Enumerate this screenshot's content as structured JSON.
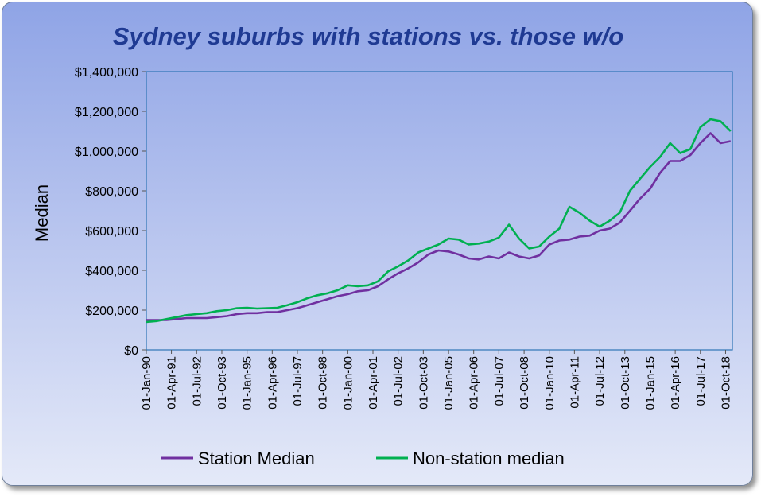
{
  "chart_data": {
    "type": "line",
    "title": "Sydney suburbs with stations vs. those w/o",
    "ylabel": "Median",
    "xlabel": "",
    "ylim": [
      0,
      1400000
    ],
    "y_ticks": [
      "$0",
      "$200,000",
      "$400,000",
      "$600,000",
      "$800,000",
      "$1,000,000",
      "$1,200,000",
      "$1,400,000"
    ],
    "x_ticks": [
      "01-Jan-90",
      "01-Apr-91",
      "01-Jul-92",
      "01-Oct-93",
      "01-Jan-95",
      "01-Apr-96",
      "01-Jul-97",
      "01-Oct-98",
      "01-Jan-00",
      "01-Apr-01",
      "01-Jul-02",
      "01-Oct-03",
      "01-Jan-05",
      "01-Apr-06",
      "01-Jul-07",
      "01-Oct-08",
      "01-Jan-10",
      "01-Apr-11",
      "01-Jul-12",
      "01-Oct-13",
      "01-Jan-15",
      "01-Apr-16",
      "01-Jul-17",
      "01-Oct-18"
    ],
    "x": [
      "1990-01-01",
      "1990-07-01",
      "1991-01-01",
      "1991-07-01",
      "1992-01-01",
      "1992-07-01",
      "1993-01-01",
      "1993-07-01",
      "1994-01-01",
      "1994-07-01",
      "1995-01-01",
      "1995-07-01",
      "1996-01-01",
      "1996-07-01",
      "1997-01-01",
      "1997-07-01",
      "1998-01-01",
      "1998-07-01",
      "1999-01-01",
      "1999-07-01",
      "2000-01-01",
      "2000-07-01",
      "2001-01-01",
      "2001-07-01",
      "2002-01-01",
      "2002-07-01",
      "2003-01-01",
      "2003-07-01",
      "2004-01-01",
      "2004-07-01",
      "2005-01-01",
      "2005-07-01",
      "2006-01-01",
      "2006-07-01",
      "2007-01-01",
      "2007-07-01",
      "2008-01-01",
      "2008-07-01",
      "2009-01-01",
      "2009-07-01",
      "2010-01-01",
      "2010-07-01",
      "2011-01-01",
      "2011-07-01",
      "2012-01-01",
      "2012-07-01",
      "2013-01-01",
      "2013-07-01",
      "2014-01-01",
      "2014-07-01",
      "2015-01-01",
      "2015-07-01",
      "2016-01-01",
      "2016-07-01",
      "2017-01-01",
      "2017-07-01",
      "2018-01-01",
      "2018-07-01",
      "2019-01-01"
    ],
    "series": [
      {
        "name": "Station Median",
        "color": "#7030a0",
        "values": [
          150000,
          150000,
          150000,
          155000,
          160000,
          160000,
          160000,
          165000,
          170000,
          180000,
          185000,
          185000,
          190000,
          190000,
          200000,
          210000,
          225000,
          240000,
          255000,
          270000,
          280000,
          295000,
          300000,
          320000,
          355000,
          385000,
          410000,
          440000,
          480000,
          500000,
          495000,
          480000,
          460000,
          455000,
          470000,
          460000,
          490000,
          470000,
          460000,
          475000,
          530000,
          550000,
          555000,
          570000,
          575000,
          600000,
          610000,
          640000,
          700000,
          760000,
          810000,
          890000,
          950000,
          950000,
          980000,
          1040000,
          1090000,
          1040000,
          1050000
        ]
      },
      {
        "name": "Non-station median",
        "color": "#00b050",
        "values": [
          140000,
          145000,
          155000,
          165000,
          175000,
          180000,
          185000,
          195000,
          200000,
          210000,
          212000,
          208000,
          210000,
          212000,
          225000,
          240000,
          260000,
          275000,
          285000,
          300000,
          325000,
          320000,
          325000,
          345000,
          395000,
          420000,
          450000,
          490000,
          510000,
          530000,
          560000,
          555000,
          530000,
          535000,
          545000,
          565000,
          630000,
          560000,
          510000,
          520000,
          570000,
          610000,
          720000,
          690000,
          650000,
          620000,
          650000,
          690000,
          800000,
          860000,
          920000,
          970000,
          1040000,
          990000,
          1010000,
          1120000,
          1160000,
          1150000,
          1100000
        ]
      }
    ],
    "grid": false,
    "legend": "bottom"
  }
}
